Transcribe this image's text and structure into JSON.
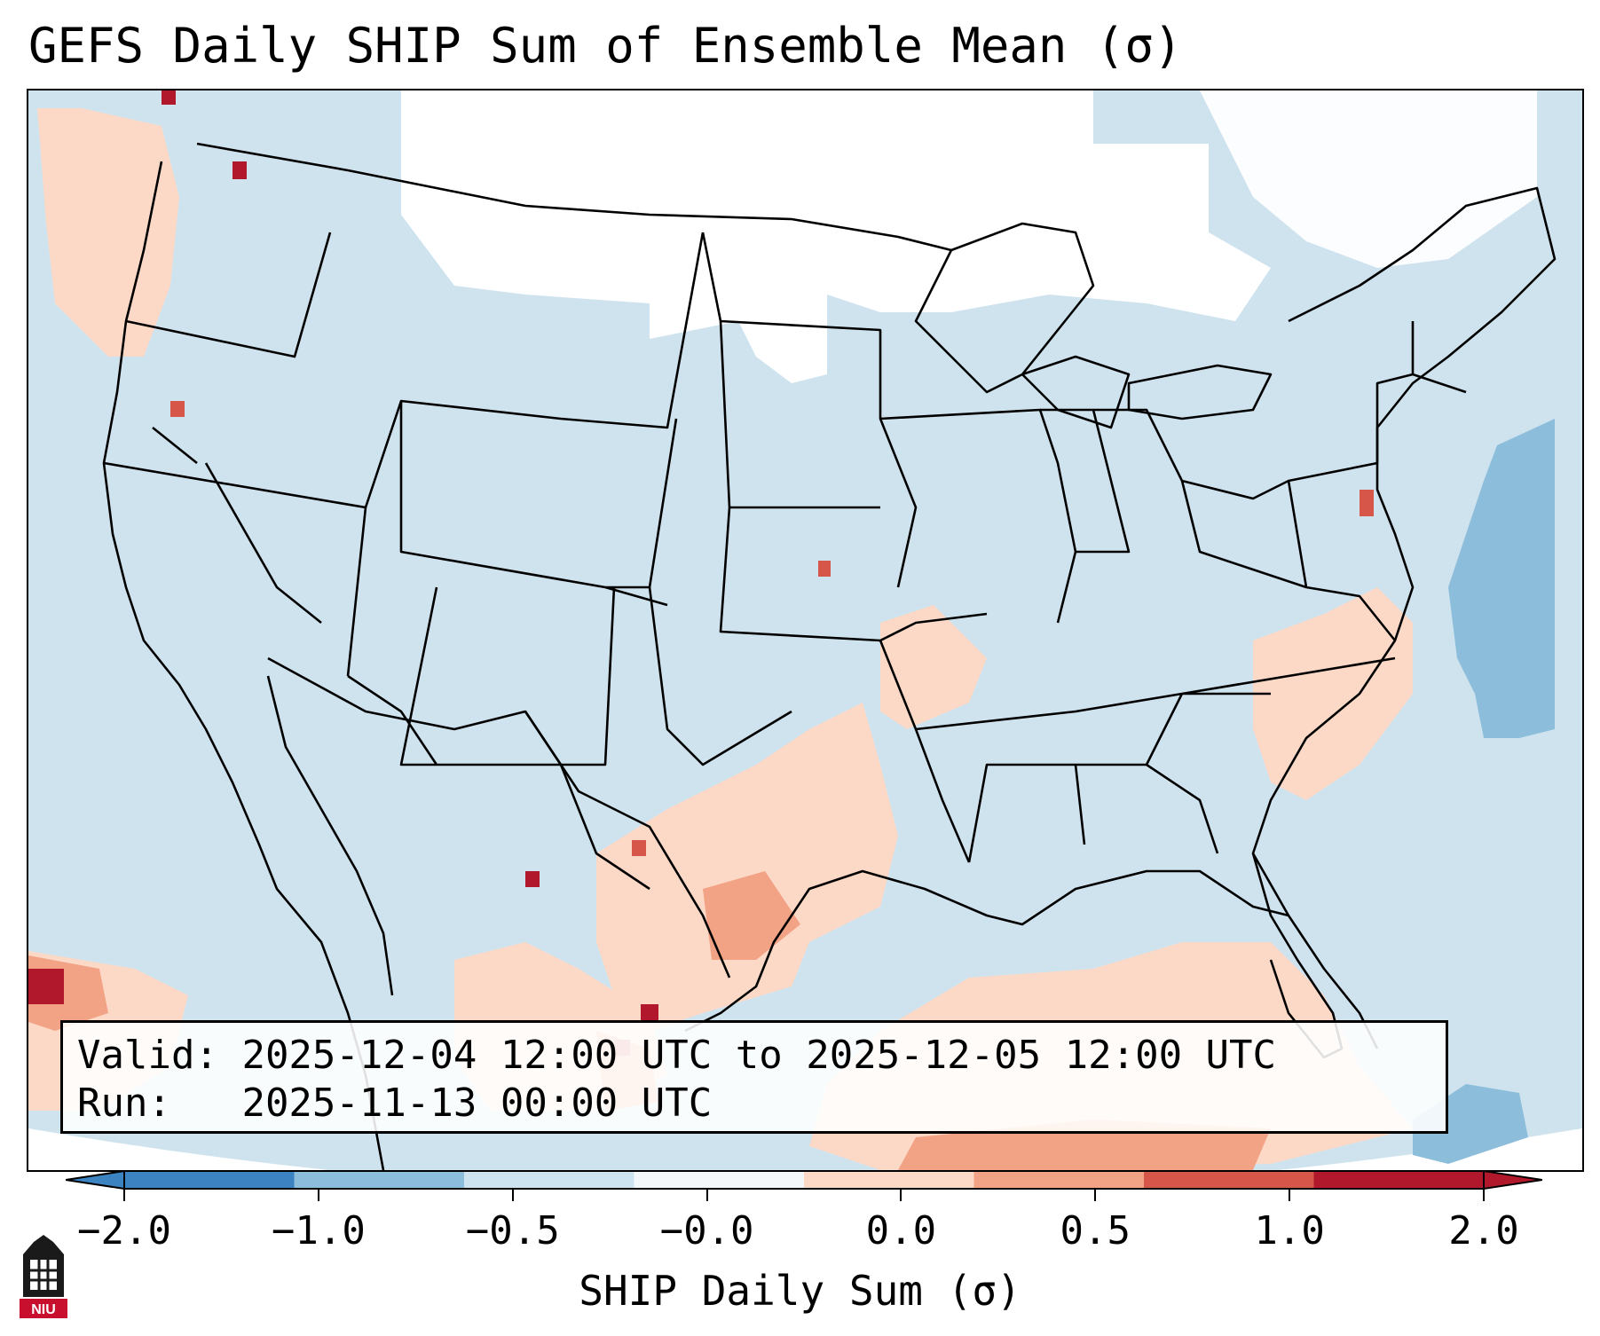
{
  "title": "GEFS Daily SHIP Sum of Ensemble Mean (σ)",
  "info": {
    "valid_label": "Valid:",
    "valid_text": "2025-12-04 12:00 UTC to 2025-12-05 12:00 UTC",
    "run_label": "Run:",
    "run_text": "2025-11-13 00:00 UTC"
  },
  "colorbar": {
    "label": "SHIP Daily Sum (σ)",
    "ticks": [
      "−2.0",
      "−1.0",
      "−0.5",
      "−0.0",
      "0.0",
      "0.5",
      "1.0",
      "2.0"
    ],
    "colors": [
      "#3b83c1",
      "#8cbedc",
      "#cde3f0",
      "#f4f7f9",
      "#fcd9c7",
      "#f2a285",
      "#d6574a",
      "#b2182b"
    ],
    "extend": "both"
  },
  "logo": {
    "text": "NIU"
  },
  "map": {
    "ocean_color": "#cfe3ef",
    "neutral_color": "#ffffff",
    "positive_light": "#fcd9c7",
    "positive_mid": "#f2a285",
    "positive_strong": "#d6574a",
    "positive_max": "#b2182b",
    "negative_light": "#8cbedc"
  }
}
